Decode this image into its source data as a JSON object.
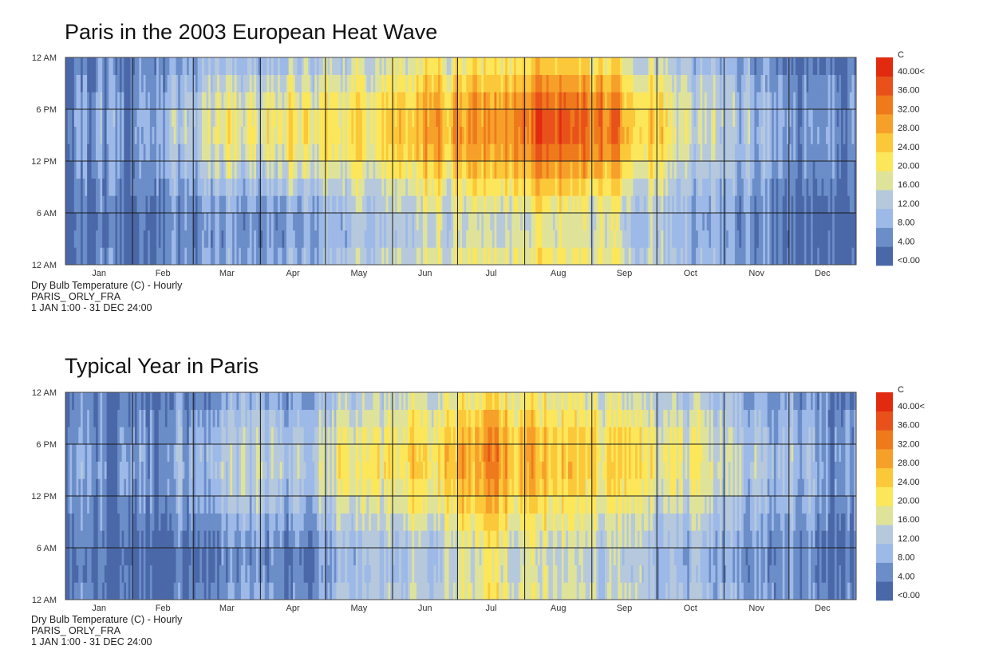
{
  "chart_data": [
    {
      "type": "heatmap",
      "title": "Paris in the 2003 European Heat Wave",
      "caption_lines": [
        "Dry Bulb Temperature (C) - Hourly",
        "PARIS_ ORLY_FRA",
        "1 JAN 1:00 - 31 DEC 24:00"
      ],
      "x_tick_labels": [
        "Jan",
        "Feb",
        "Mar",
        "Apr",
        "May",
        "Jun",
        "Jul",
        "Aug",
        "Sep",
        "Oct",
        "Nov",
        "Dec"
      ],
      "y_tick_labels": [
        "12 AM",
        "6 AM",
        "12 PM",
        "6 PM",
        "12 AM"
      ],
      "legend_unit": "C",
      "legend_labels": [
        "<0.00",
        "4.00",
        "8.00",
        "12.00",
        "16.00",
        "20.00",
        "24.00",
        "28.00",
        "32.00",
        "36.00",
        "40.00<"
      ],
      "monthly_peak_temperature_c": [
        5,
        6,
        17,
        21,
        19,
        28,
        30,
        38,
        27,
        16,
        8,
        6
      ],
      "monthly_min_temperature_c": [
        1,
        1,
        4,
        6,
        9,
        14,
        15,
        17,
        12,
        8,
        3,
        1
      ]
    },
    {
      "type": "heatmap",
      "title": "Typical Year in Paris",
      "caption_lines": [
        "Dry Bulb Temperature (C) - Hourly",
        "PARIS_ ORLY_FRA",
        "1 JAN 1:00 - 31 DEC 24:00"
      ],
      "x_tick_labels": [
        "Jan",
        "Feb",
        "Mar",
        "Apr",
        "May",
        "Jun",
        "Jul",
        "Aug",
        "Sep",
        "Oct",
        "Nov",
        "Dec"
      ],
      "y_tick_labels": [
        "12 AM",
        "6 AM",
        "12 PM",
        "6 PM",
        "12 AM"
      ],
      "legend_unit": "C",
      "legend_labels": [
        "<0.00",
        "4.00",
        "8.00",
        "12.00",
        "16.00",
        "20.00",
        "24.00",
        "28.00",
        "32.00",
        "36.00",
        "40.00<"
      ],
      "monthly_peak_temperature_c": [
        5,
        7,
        11,
        15,
        19,
        23,
        27,
        26,
        22,
        17,
        10,
        6
      ],
      "monthly_min_temperature_c": [
        1,
        1,
        3,
        5,
        9,
        12,
        15,
        15,
        12,
        8,
        4,
        2
      ]
    }
  ],
  "colors": {
    "scale": [
      "#4a68a8",
      "#6b8dc8",
      "#9db9e8",
      "#b6c9dc",
      "#dfe39a",
      "#fce65a",
      "#fbc83a",
      "#f6a02a",
      "#ee7a1c",
      "#e8521a",
      "#e22a10"
    ],
    "grid": "#1a1a1a",
    "axis_text": "#333333"
  }
}
